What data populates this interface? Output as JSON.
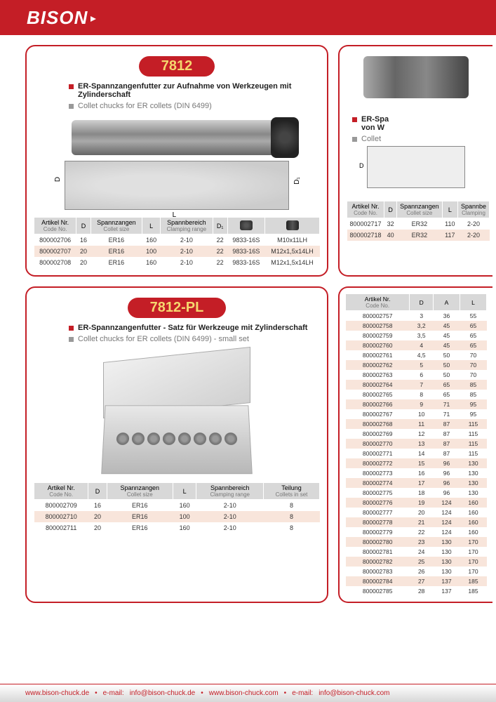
{
  "brand": "BISON",
  "footer": {
    "url1": "www.bison-chuck.de",
    "sep": "•",
    "email1_label": "e-mail:",
    "email1": "info@bison-chuck.de",
    "url2": "www.bison-chuck.com",
    "email2_label": "e-mail:",
    "email2": "info@bison-chuck.com"
  },
  "card7812": {
    "title": "7812",
    "desc_de": "ER-Spannzangenfutter zur Aufnahme von Werkzeugen mit Zylinderschaft",
    "desc_en": "Collet chucks for ER collets (DIN 6499)",
    "diagram": {
      "D": "D",
      "D1": "D₁",
      "L": "L"
    },
    "columns": {
      "code": "Artikel Nr.",
      "code_sub": "Code No.",
      "d": "D",
      "collet": "Spannzangen",
      "collet_sub": "Collet size",
      "l": "L",
      "range": "Spannbereich",
      "range_sub": "Clamping range",
      "d1": "D₁",
      "icon1": "",
      "icon2": ""
    },
    "rows": [
      {
        "code": "800002706",
        "d": "16",
        "collet": "ER16",
        "l": "160",
        "range": "2-10",
        "d1": "22",
        "a": "9833-16S",
        "b": "M10x11LH"
      },
      {
        "code": "800002707",
        "d": "20",
        "collet": "ER16",
        "l": "100",
        "range": "2-10",
        "d1": "22",
        "a": "9833-16S",
        "b": "M12x1,5x14LH"
      },
      {
        "code": "800002708",
        "d": "20",
        "collet": "ER16",
        "l": "160",
        "range": "2-10",
        "d1": "22",
        "a": "9833-16S",
        "b": "M12x1,5x14LH"
      }
    ]
  },
  "card_right1": {
    "desc_de_prefix": "ER-Spa",
    "desc_de_line2": "von W",
    "desc_en_prefix": "Collet",
    "columns": {
      "code": "Artikel Nr.",
      "code_sub": "Code No.",
      "d": "D",
      "collet": "Spannzangen",
      "collet_sub": "Collet size",
      "l": "L",
      "range": "Spannbe",
      "range_sub": "Clamping"
    },
    "rows": [
      {
        "code": "800002717",
        "d": "32",
        "collet": "ER32",
        "l": "110",
        "range": "2-20"
      },
      {
        "code": "800002718",
        "d": "40",
        "collet": "ER32",
        "l": "117",
        "range": "2-20"
      }
    ]
  },
  "card7812pl": {
    "title": "7812-PL",
    "desc_de": "ER-Spannzangenfutter - Satz für Werkzeuge mit Zylinderschaft",
    "desc_en": "Collet chucks for ER collets (DIN 6499) - small set",
    "columns": {
      "code": "Artikel Nr.",
      "code_sub": "Code No.",
      "d": "D",
      "collet": "Spannzangen",
      "collet_sub": "Collet size",
      "l": "L",
      "range": "Spannbereich",
      "range_sub": "Clamping range",
      "set": "Teilung",
      "set_sub": "Collets in set"
    },
    "rows": [
      {
        "code": "800002709",
        "d": "16",
        "collet": "ER16",
        "l": "160",
        "range": "2-10",
        "set": "8"
      },
      {
        "code": "800002710",
        "d": "20",
        "collet": "ER16",
        "l": "100",
        "range": "2-10",
        "set": "8"
      },
      {
        "code": "800002711",
        "d": "20",
        "collet": "ER16",
        "l": "160",
        "range": "2-10",
        "set": "8"
      }
    ]
  },
  "card_right2": {
    "columns": {
      "code": "Artikel Nr.",
      "code_sub": "Code No.",
      "d": "D",
      "a": "A",
      "l": "L"
    },
    "rows": [
      {
        "code": "800002757",
        "d": "3",
        "a": "36",
        "l": "55"
      },
      {
        "code": "800002758",
        "d": "3,2",
        "a": "45",
        "l": "65"
      },
      {
        "code": "800002759",
        "d": "3,5",
        "a": "45",
        "l": "65"
      },
      {
        "code": "800002760",
        "d": "4",
        "a": "45",
        "l": "65"
      },
      {
        "code": "800002761",
        "d": "4,5",
        "a": "50",
        "l": "70"
      },
      {
        "code": "800002762",
        "d": "5",
        "a": "50",
        "l": "70"
      },
      {
        "code": "800002763",
        "d": "6",
        "a": "50",
        "l": "70"
      },
      {
        "code": "800002764",
        "d": "7",
        "a": "65",
        "l": "85"
      },
      {
        "code": "800002765",
        "d": "8",
        "a": "65",
        "l": "85"
      },
      {
        "code": "800002766",
        "d": "9",
        "a": "71",
        "l": "95"
      },
      {
        "code": "800002767",
        "d": "10",
        "a": "71",
        "l": "95"
      },
      {
        "code": "800002768",
        "d": "11",
        "a": "87",
        "l": "115"
      },
      {
        "code": "800002769",
        "d": "12",
        "a": "87",
        "l": "115"
      },
      {
        "code": "800002770",
        "d": "13",
        "a": "87",
        "l": "115"
      },
      {
        "code": "800002771",
        "d": "14",
        "a": "87",
        "l": "115"
      },
      {
        "code": "800002772",
        "d": "15",
        "a": "96",
        "l": "130"
      },
      {
        "code": "800002773",
        "d": "16",
        "a": "96",
        "l": "130"
      },
      {
        "code": "800002774",
        "d": "17",
        "a": "96",
        "l": "130"
      },
      {
        "code": "800002775",
        "d": "18",
        "a": "96",
        "l": "130"
      },
      {
        "code": "800002776",
        "d": "19",
        "a": "124",
        "l": "160"
      },
      {
        "code": "800002777",
        "d": "20",
        "a": "124",
        "l": "160"
      },
      {
        "code": "800002778",
        "d": "21",
        "a": "124",
        "l": "160"
      },
      {
        "code": "800002779",
        "d": "22",
        "a": "124",
        "l": "160"
      },
      {
        "code": "800002780",
        "d": "23",
        "a": "130",
        "l": "170"
      },
      {
        "code": "800002781",
        "d": "24",
        "a": "130",
        "l": "170"
      },
      {
        "code": "800002782",
        "d": "25",
        "a": "130",
        "l": "170"
      },
      {
        "code": "800002783",
        "d": "26",
        "a": "130",
        "l": "170"
      },
      {
        "code": "800002784",
        "d": "27",
        "a": "137",
        "l": "185"
      },
      {
        "code": "800002785",
        "d": "28",
        "a": "137",
        "l": "185"
      }
    ]
  },
  "style": {
    "red": "#c41e26",
    "gold": "#f5d76e",
    "alt_bg": "#f8e5db",
    "header_bg": "#d8d8d8"
  }
}
